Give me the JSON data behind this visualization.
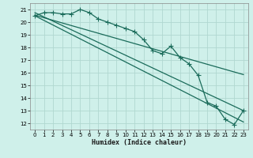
{
  "title": "",
  "xlabel": "Humidex (Indice chaleur)",
  "bg_color": "#cff0ea",
  "grid_color": "#b0d8d0",
  "line_color": "#1a6b5a",
  "xlim": [
    -0.5,
    23.5
  ],
  "ylim": [
    11.5,
    21.5
  ],
  "xticks": [
    0,
    1,
    2,
    3,
    4,
    5,
    6,
    7,
    8,
    9,
    10,
    11,
    12,
    13,
    14,
    15,
    16,
    17,
    18,
    19,
    20,
    21,
    22,
    23
  ],
  "yticks": [
    12,
    13,
    14,
    15,
    16,
    17,
    18,
    19,
    20,
    21
  ],
  "data_x": [
    0,
    1,
    2,
    3,
    4,
    5,
    6,
    7,
    8,
    9,
    10,
    11,
    12,
    13,
    14,
    15,
    16,
    17,
    18,
    19,
    20,
    21,
    22,
    23
  ],
  "data_y": [
    20.5,
    20.75,
    20.75,
    20.65,
    20.65,
    21.0,
    20.75,
    20.25,
    20.0,
    19.75,
    19.5,
    19.25,
    18.6,
    17.75,
    17.5,
    18.1,
    17.2,
    16.7,
    15.8,
    13.65,
    13.35,
    12.3,
    11.9,
    13.0
  ],
  "line1_x": [
    0,
    23
  ],
  "line1_y": [
    20.55,
    15.85
  ],
  "line2_x": [
    0,
    23
  ],
  "line2_y": [
    20.5,
    12.1
  ],
  "line3_x": [
    0,
    23
  ],
  "line3_y": [
    20.75,
    13.0
  ]
}
